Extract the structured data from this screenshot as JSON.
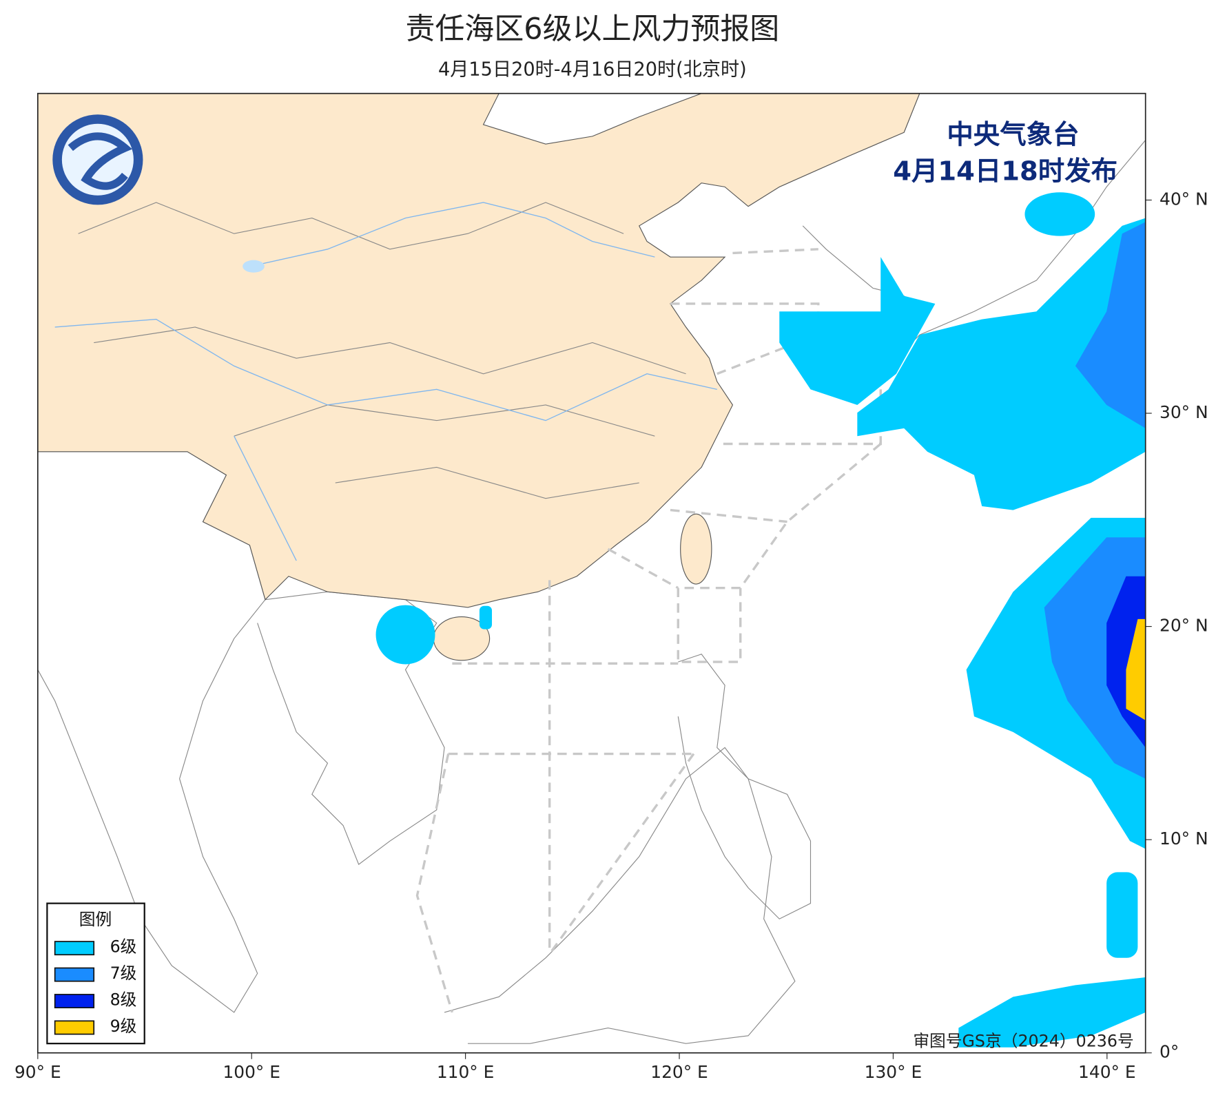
{
  "title": "责任海区6级以上风力预报图",
  "subtitle": "4月15日20时-4月16日20时(北京时)",
  "publisher": {
    "agency": "中央气象台",
    "issued": "4月14日18时发布"
  },
  "approval": "审图号GS京（2024）0236号",
  "legend": {
    "title": "图例",
    "items": [
      {
        "label": "6级",
        "color": "#00ccff"
      },
      {
        "label": "7级",
        "color": "#1a8cff"
      },
      {
        "label": "8级",
        "color": "#0022ee"
      },
      {
        "label": "9级",
        "color": "#ffcc00"
      }
    ]
  },
  "map": {
    "xlim": [
      90,
      141.8
    ],
    "ylim": [
      0,
      45
    ],
    "xticks": [
      {
        "value": 90,
        "label": "90° E"
      },
      {
        "value": 100,
        "label": "100° E"
      },
      {
        "value": 110,
        "label": "110° E"
      },
      {
        "value": 120,
        "label": "120° E"
      },
      {
        "value": 130,
        "label": "130° E"
      },
      {
        "value": 140,
        "label": "140° E"
      }
    ],
    "yticks": [
      {
        "value": 0,
        "label": "0°"
      },
      {
        "value": 10,
        "label": "10° N"
      },
      {
        "value": 20,
        "label": "20° N"
      },
      {
        "value": 30,
        "label": "30° N"
      },
      {
        "value": 40,
        "label": "40° N"
      }
    ]
  }
}
